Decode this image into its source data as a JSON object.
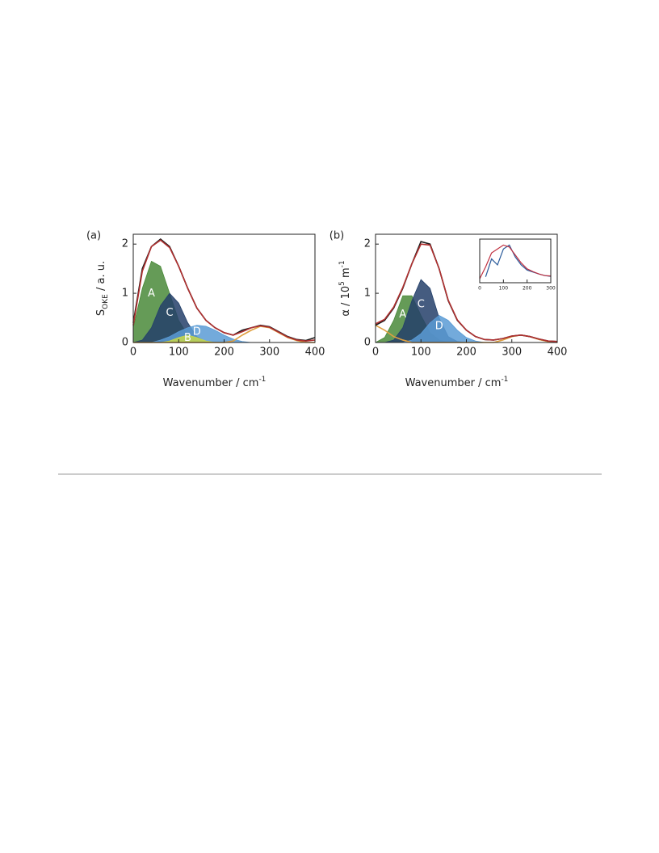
{
  "chart_data": [
    {
      "type": "line",
      "panel": "(a)",
      "ylabel": [
        {
          "text": "S"
        },
        {
          "text": "OKE",
          "shift": "sub"
        },
        {
          "text": " / a. u."
        }
      ],
      "xlabel": [
        {
          "text": "Wavenumber /  cm"
        },
        {
          "text": "-1",
          "shift": "super"
        }
      ],
      "x": [
        0,
        20,
        40,
        60,
        80,
        100,
        120,
        140,
        160,
        180,
        200,
        220,
        240,
        260,
        280,
        300,
        320,
        340,
        360,
        380,
        400
      ],
      "xlim": [
        0,
        400
      ],
      "ylim": [
        0,
        2.2
      ],
      "xticks": [
        0,
        100,
        200,
        300,
        400
      ],
      "yticks": [
        0,
        1,
        2
      ],
      "series": [
        {
          "name": "A",
          "color": "#4a8a3a",
          "style": "area",
          "values": [
            0.3,
            1.1,
            1.65,
            1.55,
            1.0,
            0.45,
            0.15,
            0.04,
            0,
            0,
            0,
            0,
            0,
            0,
            0,
            0,
            0,
            0,
            0,
            0,
            0
          ]
        },
        {
          "name": "C",
          "color": "#24406a",
          "style": "area",
          "values": [
            0,
            0.05,
            0.3,
            0.75,
            1.0,
            0.8,
            0.4,
            0.12,
            0.02,
            0,
            0,
            0,
            0,
            0,
            0,
            0,
            0,
            0,
            0,
            0,
            0
          ]
        },
        {
          "name": "D",
          "color": "#5a9bd5",
          "style": "area",
          "values": [
            0,
            0,
            0,
            0.05,
            0.12,
            0.22,
            0.3,
            0.35,
            0.33,
            0.25,
            0.15,
            0.07,
            0.02,
            0,
            0,
            0,
            0,
            0,
            0,
            0,
            0
          ]
        },
        {
          "name": "B",
          "color": "#c8d84a",
          "style": "area",
          "values": [
            0,
            0,
            0,
            0,
            0.03,
            0.1,
            0.15,
            0.1,
            0.03,
            0,
            0,
            0,
            0,
            0,
            0,
            0,
            0,
            0,
            0,
            0,
            0
          ]
        },
        {
          "color": "#e0a040",
          "style": "line",
          "values": [
            0,
            0,
            0,
            0,
            0,
            0,
            0,
            0,
            0,
            0,
            0,
            0.03,
            0.15,
            0.25,
            0.33,
            0.3,
            0.2,
            0.1,
            0.04,
            0,
            0
          ]
        },
        {
          "color": "#1a1a1a",
          "style": "line",
          "values": [
            0.4,
            1.5,
            1.95,
            2.1,
            1.95,
            1.55,
            1.1,
            0.7,
            0.45,
            0.3,
            0.2,
            0.15,
            0.25,
            0.3,
            0.35,
            0.32,
            0.22,
            0.12,
            0.06,
            0.04,
            0.1
          ]
        },
        {
          "color": "#b03030",
          "style": "line",
          "values": [
            0.35,
            1.45,
            1.95,
            2.08,
            1.93,
            1.55,
            1.1,
            0.7,
            0.45,
            0.3,
            0.2,
            0.15,
            0.22,
            0.3,
            0.34,
            0.31,
            0.21,
            0.11,
            0.05,
            0.03,
            0.05
          ]
        }
      ]
    },
    {
      "type": "line",
      "panel": "(b)",
      "ylabel": [
        {
          "text": "α / 10"
        },
        {
          "text": "5",
          "shift": "super"
        },
        {
          "text": " m"
        },
        {
          "text": "-1",
          "shift": "super"
        }
      ],
      "xlabel": [
        {
          "text": "Wavenumber /  cm"
        },
        {
          "text": "-1",
          "shift": "super"
        }
      ],
      "x": [
        0,
        20,
        40,
        60,
        80,
        100,
        120,
        140,
        160,
        180,
        200,
        220,
        240,
        260,
        280,
        300,
        320,
        340,
        360,
        380,
        400
      ],
      "xlim": [
        0,
        400
      ],
      "ylim": [
        0,
        2.2
      ],
      "xticks": [
        0,
        100,
        200,
        300,
        400
      ],
      "yticks": [
        0,
        1,
        2
      ],
      "series": [
        {
          "name": "A",
          "color": "#4a8a3a",
          "style": "area",
          "values": [
            0,
            0.1,
            0.45,
            0.95,
            0.95,
            0.55,
            0.2,
            0.05,
            0,
            0,
            0,
            0,
            0,
            0,
            0,
            0,
            0,
            0,
            0,
            0,
            0
          ]
        },
        {
          "name": "C",
          "color": "#24406a",
          "style": "area",
          "values": [
            0,
            0,
            0.05,
            0.3,
            0.85,
            1.28,
            1.1,
            0.5,
            0.12,
            0.02,
            0,
            0,
            0,
            0,
            0,
            0,
            0,
            0,
            0,
            0,
            0
          ]
        },
        {
          "name": "D",
          "color": "#5a9bd5",
          "style": "area",
          "values": [
            0,
            0,
            0,
            0,
            0.05,
            0.18,
            0.4,
            0.55,
            0.45,
            0.25,
            0.1,
            0.03,
            0,
            0,
            0,
            0,
            0,
            0,
            0,
            0,
            0
          ]
        },
        {
          "color": "#e0a040",
          "style": "line",
          "values": [
            0.35,
            0.25,
            0.12,
            0.05,
            0,
            0,
            0,
            0,
            0,
            0,
            0,
            0,
            0,
            0,
            0.05,
            0.12,
            0.15,
            0.12,
            0.06,
            0.02,
            0
          ]
        },
        {
          "color": "#1a1a1a",
          "style": "line",
          "values": [
            0.35,
            0.45,
            0.7,
            1.1,
            1.6,
            2.05,
            2.0,
            1.5,
            0.85,
            0.45,
            0.25,
            0.12,
            0.06,
            0.05,
            0.08,
            0.13,
            0.15,
            0.12,
            0.07,
            0.03,
            0.02
          ]
        },
        {
          "color": "#b03030",
          "style": "line",
          "values": [
            0.38,
            0.47,
            0.72,
            1.12,
            1.6,
            2.0,
            1.98,
            1.5,
            0.86,
            0.46,
            0.25,
            0.12,
            0.06,
            0.05,
            0.08,
            0.13,
            0.15,
            0.12,
            0.07,
            0.03,
            0.02
          ]
        }
      ]
    },
    {
      "type": "line",
      "x": [
        0,
        25,
        50,
        75,
        100,
        125,
        150,
        175,
        200,
        225,
        250,
        275,
        300
      ],
      "xlim": [
        0,
        300
      ],
      "ylim": [
        0,
        1.1
      ],
      "xticks": [
        0,
        100,
        200,
        300
      ],
      "series": [
        {
          "color": "#2a5a9a",
          "style": "line",
          "values": [
            null,
            0.15,
            0.6,
            0.45,
            0.85,
            0.95,
            0.65,
            0.45,
            0.32,
            0.27,
            0.22,
            0.18,
            0.16
          ]
        },
        {
          "color": "#c03040",
          "style": "line",
          "values": [
            0.1,
            0.4,
            0.75,
            0.85,
            0.95,
            0.9,
            0.7,
            0.5,
            0.35,
            0.28,
            0.22,
            0.18,
            0.17
          ]
        }
      ]
    }
  ]
}
